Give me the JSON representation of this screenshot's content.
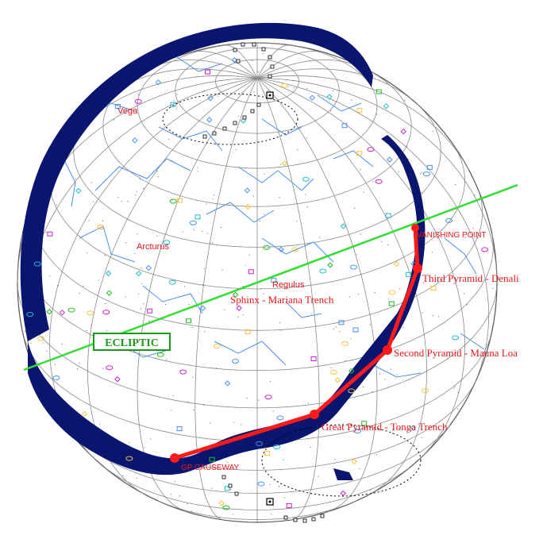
{
  "labels": {
    "ecliptic": "ECLIPTIC",
    "vanishing_point": "VANISHING POINT",
    "third_pyramid": "Third Pyramid - Denali",
    "second_pyramid": "Second Pyramid - Mauna Loa",
    "great_pyramid": "Great Pyramid - Tonga Trench",
    "sphinx": "Sphinx - Mariana Trench",
    "causeway": "GP CAUSEWAY",
    "regulus": "Regulus",
    "arcturus": "Arcturus",
    "vega": "Vega"
  },
  "colors": {
    "ocean_band": "#0a1570",
    "grid": "#8a8a8a",
    "constellation": "#4a90e8",
    "route": "#ff1a1a",
    "ecliptic": "#33dd33",
    "label_red": "#e8161b",
    "star_yellow": "#f5c542",
    "object_magenta": "#cc22cc",
    "object_green": "#22bb22",
    "object_cyan": "#22bbcc"
  }
}
